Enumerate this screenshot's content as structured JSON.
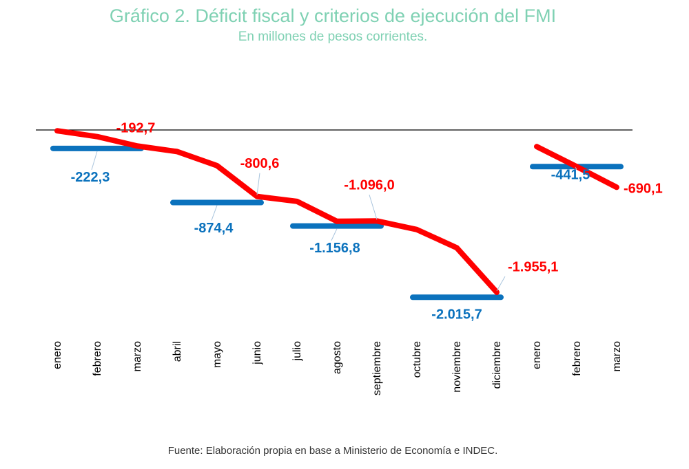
{
  "title": "Gráfico 2. Déficit fiscal y criterios de ejecución del FMI",
  "subtitle": "En millones de pesos corrientes.",
  "source": "Fuente: Elaboración propia en base a Ministerio de Economía e INDEC.",
  "colors": {
    "deficit": "#ff0000",
    "meta": "#0b72bd",
    "title": "#7fd1b3"
  },
  "chart_data": {
    "type": "line",
    "categories": [
      "enero",
      "febrero",
      "marzo",
      "abril",
      "mayo",
      "junio",
      "julio",
      "agosto",
      "septiembre",
      "octubre",
      "noviembre",
      "diciembre",
      "enero",
      "febrero",
      "marzo"
    ],
    "ylim": [
      -2300,
      0
    ],
    "series": [
      {
        "name": "",
        "color": "#ff0000",
        "segments": [
          {
            "start": 0,
            "values": [
              -10,
              -80,
              -192.7,
              -260,
              -430,
              -800.6,
              -860,
              -1100,
              -1096.0,
              -1200,
              -1420,
              -1955.1
            ]
          },
          {
            "start": 12,
            "values": [
              -200,
              -441.5,
              -690.1
            ]
          }
        ]
      },
      {
        "name": "",
        "color": "#0b72bd",
        "targets": [
          {
            "from": 0,
            "to": 2,
            "value": -222.3
          },
          {
            "from": 3,
            "to": 5,
            "value": -874.4
          },
          {
            "from": 6,
            "to": 8,
            "value": -1156.8
          },
          {
            "from": 9,
            "to": 11,
            "value": -2015.7
          },
          {
            "from": 12,
            "to": 14,
            "value": -441.5
          }
        ]
      }
    ],
    "data_labels": {
      "red": [
        {
          "i": 2,
          "v": -192.7,
          "text": "-192,7"
        },
        {
          "i": 5,
          "v": -800.6,
          "text": "-800,6"
        },
        {
          "i": 8,
          "v": -1096.0,
          "text": "-1.096,0"
        },
        {
          "i": 11,
          "v": -1955.1,
          "text": "-1.955,1"
        },
        {
          "i": 14,
          "v": -690.1,
          "text": "-690,1"
        }
      ],
      "blue": [
        {
          "i": 1,
          "v": -222.3,
          "text": "-222,3"
        },
        {
          "i": 4,
          "v": -874.4,
          "text": "-874,4"
        },
        {
          "i": 7,
          "v": -1156.8,
          "text": "-1.156,8"
        },
        {
          "i": 10,
          "v": -2015.7,
          "text": "-2.015,7"
        },
        {
          "i": 13,
          "v": -441.5,
          "text": "-441,5"
        }
      ]
    }
  }
}
